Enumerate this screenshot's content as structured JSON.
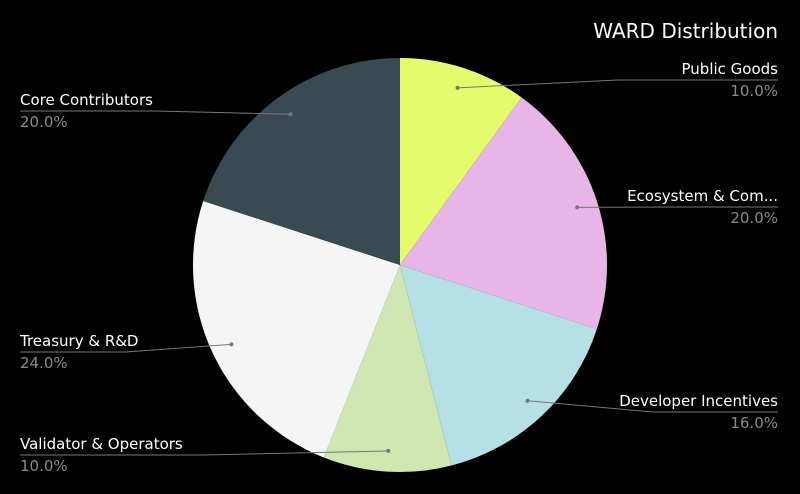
{
  "chart_data": {
    "type": "pie",
    "title": "WARD Distribution",
    "slices": [
      {
        "label": "Public Goods",
        "display_label": "Public Goods",
        "value": 10.0,
        "value_label": "10.0%",
        "color": "#e4fc6c"
      },
      {
        "label": "Ecosystem & Community",
        "display_label": "Ecosystem & Com...",
        "value": 20.0,
        "value_label": "20.0%",
        "color": "#e7b5e7"
      },
      {
        "label": "Developer Incentives",
        "display_label": "Developer Incentives",
        "value": 16.0,
        "value_label": "16.0%",
        "color": "#b5e0e6"
      },
      {
        "label": "Validator & Operators",
        "display_label": "Validator & Operators",
        "value": 10.0,
        "value_label": "10.0%",
        "color": "#cfe7b0"
      },
      {
        "label": "Treasury & R&D",
        "display_label": "Treasury & R&D",
        "value": 24.0,
        "value_label": "24.0%",
        "color": "#f5f5f5"
      },
      {
        "label": "Core Contributors",
        "display_label": "Core Contributors",
        "value": 20.0,
        "value_label": "20.0%",
        "color": "#3a4a52"
      }
    ],
    "label_color": "#ffffff",
    "value_label_color": "#8a8a8a",
    "leader_color": "#777777"
  }
}
